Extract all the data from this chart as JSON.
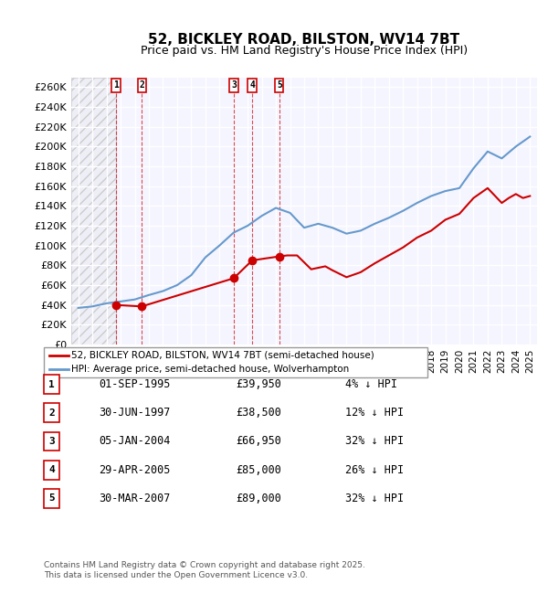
{
  "title": "52, BICKLEY ROAD, BILSTON, WV14 7BT",
  "subtitle": "Price paid vs. HM Land Registry's House Price Index (HPI)",
  "legend_property": "52, BICKLEY ROAD, BILSTON, WV14 7BT (semi-detached house)",
  "legend_hpi": "HPI: Average price, semi-detached house, Wolverhampton",
  "ylabel_ticks": [
    "£0",
    "£20K",
    "£40K",
    "£60K",
    "£80K",
    "£100K",
    "£120K",
    "£140K",
    "£160K",
    "£180K",
    "£200K",
    "£220K",
    "£240K",
    "£260K"
  ],
  "ylim": [
    0,
    270000
  ],
  "yticks": [
    0,
    20000,
    40000,
    60000,
    80000,
    100000,
    120000,
    140000,
    160000,
    180000,
    200000,
    220000,
    240000,
    260000
  ],
  "sales": [
    {
      "num": 1,
      "date": "01-SEP-1995",
      "year": 1995.67,
      "price": 39950,
      "pct": "4% ↓ HPI"
    },
    {
      "num": 2,
      "date": "30-JUN-1997",
      "year": 1997.5,
      "price": 38500,
      "pct": "12% ↓ HPI"
    },
    {
      "num": 3,
      "date": "05-JAN-2004",
      "year": 2004.01,
      "price": 66950,
      "pct": "32% ↓ HPI"
    },
    {
      "num": 4,
      "date": "29-APR-2005",
      "year": 2005.32,
      "price": 85000,
      "pct": "26% ↓ HPI"
    },
    {
      "num": 5,
      "date": "30-MAR-2007",
      "year": 2007.24,
      "price": 89000,
      "pct": "32% ↓ HPI"
    }
  ],
  "hpi_years": [
    1993,
    1994,
    1995,
    1996,
    1997,
    1998,
    1999,
    2000,
    2001,
    2002,
    2003,
    2004,
    2005,
    2006,
    2007,
    2008,
    2009,
    2010,
    2011,
    2012,
    2013,
    2014,
    2015,
    2016,
    2017,
    2018,
    2019,
    2020,
    2021,
    2022,
    2023,
    2024,
    2025
  ],
  "hpi_values": [
    37000,
    38500,
    41600,
    43500,
    45500,
    50000,
    54000,
    60000,
    70000,
    88000,
    100000,
    113000,
    120000,
    130000,
    138000,
    133000,
    118000,
    122000,
    118000,
    112000,
    115000,
    122000,
    128000,
    135000,
    143000,
    150000,
    155000,
    158000,
    178000,
    195000,
    188000,
    200000,
    210000
  ],
  "price_line_years": [
    1993,
    1994,
    1995,
    1996,
    1997,
    1998,
    1999,
    2000,
    2001,
    2002,
    2003,
    2004,
    2005,
    2006,
    2007,
    2008,
    2009,
    2010,
    2011,
    2012,
    2013,
    2014,
    2015,
    2016,
    2017,
    2018,
    2019,
    2020,
    2021,
    2022,
    2023,
    2024,
    2025
  ],
  "price_line_values": [
    null,
    null,
    39950,
    null,
    38500,
    null,
    null,
    null,
    null,
    null,
    null,
    66950,
    85000,
    null,
    89000,
    90000,
    75000,
    78000,
    73000,
    68000,
    73000,
    82000,
    90000,
    98000,
    108000,
    118000,
    128000,
    132000,
    148000,
    155000,
    142000,
    150000,
    148000
  ],
  "sale_color": "#cc0000",
  "hpi_color": "#6699cc",
  "background_hatch_color": "#e8e8e8",
  "plot_bg": "#f0f4ff",
  "footer": "Contains HM Land Registry data © Crown copyright and database right 2025.\nThis data is licensed under the Open Government Licence v3.0."
}
